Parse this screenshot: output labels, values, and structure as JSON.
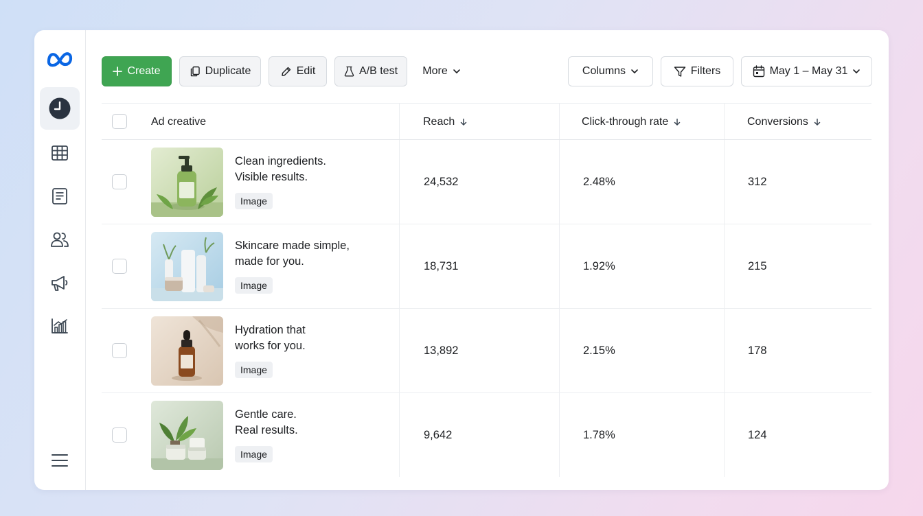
{
  "toolbar": {
    "create_label": "Create",
    "duplicate_label": "Duplicate",
    "edit_label": "Edit",
    "ab_test_label": "A/B test",
    "more_label": "More",
    "columns_label": "Columns",
    "filters_label": "Filters",
    "date_range_label": "May 1 – May 31"
  },
  "sidebar": {
    "items": [
      {
        "icon": "clock-icon",
        "active": true
      },
      {
        "icon": "table-icon",
        "active": false
      },
      {
        "icon": "document-icon",
        "active": false
      },
      {
        "icon": "users-icon",
        "active": false
      },
      {
        "icon": "megaphone-icon",
        "active": false
      },
      {
        "icon": "chart-icon",
        "active": false
      }
    ],
    "menu_icon": "menu-icon"
  },
  "table": {
    "columns": {
      "creative": "Ad creative",
      "reach": "Reach",
      "ctr": "Click-through rate",
      "conversions": "Conversions"
    },
    "rows": [
      {
        "line1": "Clean ingredients.",
        "line2": "Visible results.",
        "tag": "Image",
        "reach": "24,532",
        "ctr": "2.48%",
        "conversions": "312"
      },
      {
        "line1": "Skincare made simple,",
        "line2": "made for you.",
        "tag": "Image",
        "reach": "18,731",
        "ctr": "1.92%",
        "conversions": "215"
      },
      {
        "line1": "Hydration that",
        "line2": "works for you.",
        "tag": "Image",
        "reach": "13,892",
        "ctr": "2.15%",
        "conversions": "178"
      },
      {
        "line1": "Gentle care.",
        "line2": "Real results.",
        "tag": "Image",
        "reach": "9,642",
        "ctr": "1.78%",
        "conversions": "124"
      }
    ]
  },
  "colors": {
    "primary_button": "#3fa552",
    "meta_blue": "#0a66e4",
    "border": "#d7dbe0"
  }
}
